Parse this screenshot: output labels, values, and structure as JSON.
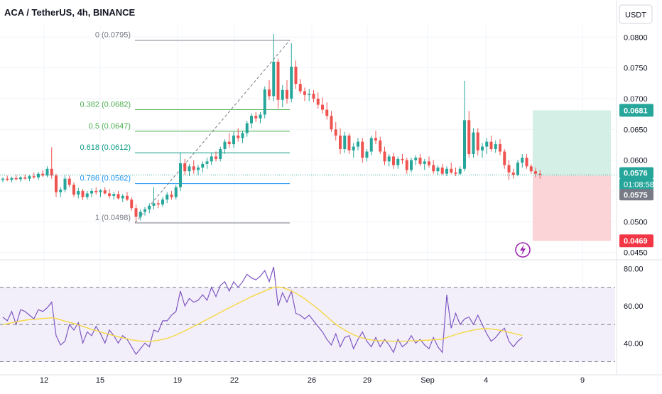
{
  "header": {
    "title": "ACA / TetherUS, 4h, BINANCE",
    "currency_button": "USDT"
  },
  "colors": {
    "up": "#26a69a",
    "down": "#ef5350",
    "fib_gray": "#787b86",
    "fib_green": "#4caf50",
    "fib_teal": "#089981",
    "fib_blue": "#2196f3",
    "rsi": "#7e57c2",
    "rsi_ma": "#f5d742",
    "target_zone": "#d4efe6",
    "stop_zone": "#fad4d7",
    "last_price_badge": "#26a69a",
    "stop_badge": "#f23645",
    "icon_purple": "#9c27b0"
  },
  "chart_data": [
    {
      "type": "candlestick",
      "title": "ACA / TetherUS, 4h, BINANCE",
      "y_unit": "USDT",
      "x_ticks": [
        "12",
        "15",
        "19",
        "22",
        "26",
        "29",
        "Sep",
        "4",
        "9"
      ],
      "ylim": [
        0.0445,
        0.0828
      ],
      "y_ticks": [
        "0.0800",
        "0.0750",
        "0.0700",
        "0.0650",
        "0.0600",
        "0.0550",
        "0.0500",
        "0.0450"
      ],
      "candles": [
        [
          0.0568,
          0.0572,
          0.0564,
          0.057
        ],
        [
          0.057,
          0.0575,
          0.0566,
          0.0568
        ],
        [
          0.0568,
          0.0573,
          0.0564,
          0.0571
        ],
        [
          0.0571,
          0.0576,
          0.0567,
          0.0569
        ],
        [
          0.0569,
          0.0574,
          0.0565,
          0.0572
        ],
        [
          0.0572,
          0.0577,
          0.0568,
          0.057
        ],
        [
          0.057,
          0.0576,
          0.0566,
          0.0574
        ],
        [
          0.0574,
          0.058,
          0.057,
          0.0572
        ],
        [
          0.0572,
          0.0581,
          0.0568,
          0.0578
        ],
        [
          0.0578,
          0.0584,
          0.0573,
          0.0575
        ],
        [
          0.0575,
          0.059,
          0.0572,
          0.0586
        ],
        [
          0.0586,
          0.0621,
          0.057,
          0.0575
        ],
        [
          0.0575,
          0.0578,
          0.054,
          0.0548
        ],
        [
          0.0548,
          0.0556,
          0.054,
          0.0552
        ],
        [
          0.0552,
          0.0575,
          0.0548,
          0.057
        ],
        [
          0.057,
          0.0575,
          0.0556,
          0.056
        ],
        [
          0.056,
          0.0564,
          0.054,
          0.0544
        ],
        [
          0.0544,
          0.0555,
          0.0538,
          0.055
        ],
        [
          0.055,
          0.0553,
          0.0535,
          0.054
        ],
        [
          0.054,
          0.055,
          0.0536,
          0.0546
        ],
        [
          0.0546,
          0.0554,
          0.054,
          0.055
        ],
        [
          0.055,
          0.0556,
          0.0544,
          0.0548
        ],
        [
          0.0548,
          0.0553,
          0.054,
          0.0551
        ],
        [
          0.0551,
          0.0556,
          0.0544,
          0.0546
        ],
        [
          0.0546,
          0.0553,
          0.0538,
          0.0542
        ],
        [
          0.0542,
          0.0548,
          0.0536,
          0.0545
        ],
        [
          0.0545,
          0.055,
          0.0536,
          0.0538
        ],
        [
          0.0538,
          0.0545,
          0.0532,
          0.0542
        ],
        [
          0.0542,
          0.0548,
          0.0534,
          0.0536
        ],
        [
          0.0536,
          0.054,
          0.0518,
          0.0522
        ],
        [
          0.0522,
          0.0528,
          0.05,
          0.0508
        ],
        [
          0.0508,
          0.052,
          0.0502,
          0.0516
        ],
        [
          0.0516,
          0.0524,
          0.051,
          0.052
        ],
        [
          0.052,
          0.053,
          0.0514,
          0.0526
        ],
        [
          0.0526,
          0.0556,
          0.052,
          0.053
        ],
        [
          0.053,
          0.0536,
          0.0522,
          0.0528
        ],
        [
          0.0528,
          0.054,
          0.0524,
          0.0536
        ],
        [
          0.0536,
          0.0548,
          0.053,
          0.0544
        ],
        [
          0.0544,
          0.055,
          0.0536,
          0.054
        ],
        [
          0.054,
          0.056,
          0.0536,
          0.0556
        ],
        [
          0.0556,
          0.0612,
          0.055,
          0.0595
        ],
        [
          0.0595,
          0.0602,
          0.0576,
          0.0582
        ],
        [
          0.0582,
          0.0594,
          0.0574,
          0.059
        ],
        [
          0.059,
          0.06,
          0.0578,
          0.0584
        ],
        [
          0.0584,
          0.0592,
          0.0576,
          0.0588
        ],
        [
          0.0588,
          0.0598,
          0.058,
          0.0594
        ],
        [
          0.0594,
          0.0604,
          0.0586,
          0.0598
        ],
        [
          0.0598,
          0.0612,
          0.0592,
          0.0606
        ],
        [
          0.0606,
          0.0614,
          0.0598,
          0.0602
        ],
        [
          0.0602,
          0.0622,
          0.0598,
          0.0618
        ],
        [
          0.0618,
          0.0634,
          0.061,
          0.063
        ],
        [
          0.063,
          0.0644,
          0.062,
          0.0626
        ],
        [
          0.0626,
          0.0646,
          0.062,
          0.064
        ],
        [
          0.064,
          0.0652,
          0.063,
          0.0636
        ],
        [
          0.0636,
          0.0648,
          0.0628,
          0.0644
        ],
        [
          0.0644,
          0.0664,
          0.0638,
          0.066
        ],
        [
          0.066,
          0.0676,
          0.0652,
          0.0672
        ],
        [
          0.0672,
          0.0678,
          0.0662,
          0.0668
        ],
        [
          0.0668,
          0.0678,
          0.066,
          0.0674
        ],
        [
          0.0674,
          0.072,
          0.0668,
          0.0715
        ],
        [
          0.0715,
          0.073,
          0.0698,
          0.0704
        ],
        [
          0.0704,
          0.0805,
          0.0696,
          0.076
        ],
        [
          0.076,
          0.0765,
          0.0684,
          0.0698
        ],
        [
          0.0698,
          0.0722,
          0.0686,
          0.0714
        ],
        [
          0.0714,
          0.073,
          0.0692,
          0.07
        ],
        [
          0.07,
          0.079,
          0.0694,
          0.0752
        ],
        [
          0.0752,
          0.0762,
          0.0716,
          0.0724
        ],
        [
          0.0724,
          0.0732,
          0.0708,
          0.0712
        ],
        [
          0.0712,
          0.0718,
          0.0696,
          0.0706
        ],
        [
          0.0706,
          0.0716,
          0.0696,
          0.0708
        ],
        [
          0.0708,
          0.0714,
          0.0694,
          0.07
        ],
        [
          0.07,
          0.071,
          0.0684,
          0.069
        ],
        [
          0.069,
          0.0702,
          0.0676,
          0.0682
        ],
        [
          0.0682,
          0.0694,
          0.0666,
          0.0672
        ],
        [
          0.0672,
          0.068,
          0.0646,
          0.065
        ],
        [
          0.065,
          0.0662,
          0.0632,
          0.064
        ],
        [
          0.064,
          0.0652,
          0.061,
          0.0618
        ],
        [
          0.0618,
          0.0646,
          0.0612,
          0.064
        ],
        [
          0.064,
          0.0644,
          0.061,
          0.0616
        ],
        [
          0.0616,
          0.0628,
          0.0604,
          0.0622
        ],
        [
          0.0622,
          0.0636,
          0.0616,
          0.063
        ],
        [
          0.063,
          0.0636,
          0.0596,
          0.0604
        ],
        [
          0.0604,
          0.0618,
          0.0598,
          0.0614
        ],
        [
          0.0614,
          0.064,
          0.0608,
          0.0636
        ],
        [
          0.0636,
          0.0648,
          0.0626,
          0.0632
        ],
        [
          0.0632,
          0.0638,
          0.061,
          0.0614
        ],
        [
          0.0614,
          0.0622,
          0.0592,
          0.0598
        ],
        [
          0.0598,
          0.061,
          0.059,
          0.0606
        ],
        [
          0.0606,
          0.0612,
          0.0586,
          0.0592
        ],
        [
          0.0592,
          0.0606,
          0.0586,
          0.0602
        ],
        [
          0.0602,
          0.061,
          0.0594,
          0.06
        ],
        [
          0.06,
          0.0604,
          0.0578,
          0.0584
        ],
        [
          0.0584,
          0.0604,
          0.058,
          0.06
        ],
        [
          0.06,
          0.0608,
          0.0592,
          0.0604
        ],
        [
          0.0604,
          0.061,
          0.059,
          0.0594
        ],
        [
          0.0594,
          0.0602,
          0.0584,
          0.0598
        ],
        [
          0.0598,
          0.0606,
          0.0588,
          0.0592
        ],
        [
          0.0592,
          0.06,
          0.0578,
          0.0582
        ],
        [
          0.0582,
          0.0592,
          0.0576,
          0.0588
        ],
        [
          0.0588,
          0.0594,
          0.0576,
          0.0578
        ],
        [
          0.0578,
          0.059,
          0.0574,
          0.0586
        ],
        [
          0.0586,
          0.0596,
          0.0578,
          0.058
        ],
        [
          0.058,
          0.0588,
          0.0574,
          0.0578
        ],
        [
          0.0578,
          0.059,
          0.0576,
          0.0586
        ],
        [
          0.0586,
          0.0729,
          0.0582,
          0.0665
        ],
        [
          0.0665,
          0.068,
          0.0604,
          0.061
        ],
        [
          0.061,
          0.0652,
          0.0604,
          0.0645
        ],
        [
          0.0645,
          0.0652,
          0.0608,
          0.0616
        ],
        [
          0.0616,
          0.0628,
          0.0604,
          0.0622
        ],
        [
          0.0622,
          0.0636,
          0.061,
          0.063
        ],
        [
          0.063,
          0.064,
          0.0614,
          0.0618
        ],
        [
          0.0618,
          0.0632,
          0.0612,
          0.0626
        ],
        [
          0.0626,
          0.0634,
          0.0608,
          0.0614
        ],
        [
          0.0614,
          0.0618,
          0.0586,
          0.0592
        ],
        [
          0.0592,
          0.06,
          0.0568,
          0.058
        ],
        [
          0.058,
          0.0586,
          0.057,
          0.0576
        ],
        [
          0.0576,
          0.06,
          0.0574,
          0.0596
        ],
        [
          0.0596,
          0.061,
          0.0588,
          0.0604
        ],
        [
          0.0604,
          0.061,
          0.0586,
          0.059
        ],
        [
          0.059,
          0.0594,
          0.0578,
          0.0582
        ],
        [
          0.0582,
          0.0588,
          0.0572,
          0.0578
        ],
        [
          0.0578,
          0.0584,
          0.057,
          0.0576
        ]
      ],
      "last_price": 0.0576,
      "countdown": "01:08:58",
      "fibonacci": [
        {
          "label": "0 (0.0795)",
          "value": 0.0795,
          "color": "#787b86"
        },
        {
          "label": "0.382 (0.0682)",
          "value": 0.0682,
          "color": "#4caf50"
        },
        {
          "label": "0.5 (0.0647)",
          "value": 0.0647,
          "color": "#4caf50"
        },
        {
          "label": "0.618 (0.0612)",
          "value": 0.0612,
          "color": "#089981"
        },
        {
          "label": "0.786 (0.0562)",
          "value": 0.0562,
          "color": "#2196f3"
        },
        {
          "label": "1 (0.0498)",
          "value": 0.0498,
          "color": "#787b86"
        }
      ],
      "position": {
        "entry": 0.0575,
        "target": 0.0681,
        "stop": 0.0469
      },
      "price_badges": [
        {
          "label": "0.0681",
          "value": 0.0681,
          "color": "#26a69a"
        },
        {
          "label": "0.0576",
          "value": 0.0576,
          "color": "#26a69a"
        },
        {
          "label": "01:08:58",
          "value": 0.0576,
          "color": "#26a69a"
        },
        {
          "label": "0.0575",
          "value": 0.0575,
          "color": "#787b86"
        },
        {
          "label": "0.0469",
          "value": 0.0469,
          "color": "#f23645"
        }
      ]
    },
    {
      "type": "line",
      "series": [
        {
          "values": [
            54,
            52,
            57,
            50,
            58,
            57,
            55,
            53,
            58,
            57,
            59,
            62,
            44,
            39,
            41,
            50,
            47,
            51,
            40,
            46,
            44,
            49,
            45,
            40,
            47,
            44,
            40,
            44,
            42,
            38,
            34,
            37,
            40,
            38,
            47,
            46,
            52,
            52,
            55,
            57,
            68,
            60,
            64,
            62,
            63,
            66,
            63,
            70,
            65,
            71,
            73,
            68,
            73,
            70,
            73,
            77,
            75,
            74,
            76,
            79,
            73,
            81,
            60,
            67,
            62,
            68,
            56,
            55,
            53,
            55,
            52,
            49,
            46,
            42,
            39,
            45,
            38,
            43,
            44,
            37,
            42,
            46,
            41,
            38,
            43,
            38,
            42,
            39,
            35,
            42,
            38,
            40,
            44,
            40,
            42,
            39,
            37,
            43,
            38,
            35,
            66,
            48,
            56,
            50,
            53,
            54,
            50,
            55,
            50,
            45,
            41,
            43,
            46,
            48,
            41,
            38,
            41,
            43
          ]
        }
      ],
      "ma_series": {
        "values": [
          50,
          50.4,
          50.9,
          51.4,
          51.9,
          52.3,
          52.6,
          52.8,
          53,
          53.2,
          53.4,
          53.6,
          53.2,
          52.5,
          51.8,
          51.2,
          50.5,
          49.8,
          49,
          48.2,
          47.4,
          46.7,
          46,
          45.3,
          44.6,
          44,
          43.4,
          42.8,
          42.3,
          41.8,
          41.4,
          41.1,
          41,
          41,
          41.2,
          41.5,
          42,
          42.6,
          43.4,
          44.3,
          45.5,
          46.6,
          47.8,
          49,
          50.2,
          51.5,
          52.7,
          54,
          55.2,
          56.5,
          57.8,
          59,
          60.2,
          61.4,
          62.6,
          63.8,
          65,
          66,
          67,
          68,
          69,
          70,
          70.2,
          69.8,
          69,
          68,
          66.8,
          65.4,
          63.8,
          62,
          60.2,
          58.3,
          56.3,
          54.2,
          52.1,
          50.2,
          48.5,
          47,
          45.7,
          44.5,
          43.5,
          42.7,
          42.1,
          41.7,
          41.4,
          41.3,
          41.2,
          41.1,
          41,
          41,
          41,
          41.1,
          41.2,
          41.3,
          41.4,
          41.5,
          41.6,
          41.8,
          42,
          42.2,
          43,
          43.8,
          44.6,
          45.3,
          45.9,
          46.5,
          47,
          47.4,
          47.7,
          47.8,
          47.6,
          47.3,
          46.9,
          46.4,
          45.8,
          45.2,
          44.6,
          44.1
        ]
      },
      "ylim": [
        26,
        84
      ],
      "y_ticks": [
        "80.00",
        "60.00",
        "40.00"
      ],
      "bands": [
        70,
        50,
        30
      ]
    }
  ]
}
